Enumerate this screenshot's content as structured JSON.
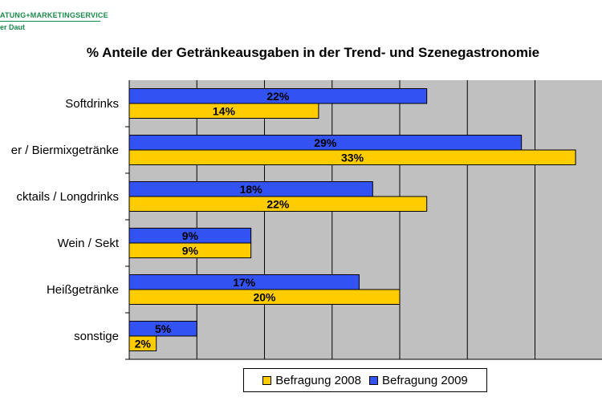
{
  "logo": {
    "line1": "ATUNG+MARKETINGSERVICE",
    "line2": "er Daut"
  },
  "chart_data": {
    "type": "bar",
    "orientation": "horizontal",
    "title": "% Anteile der Getränkeausgaben in der Trend- und Szenegastronomie",
    "categories": [
      "Softdrinks",
      "er / Biermixgetränke",
      "cktails / Longdrinks",
      "Wein / Sekt",
      "Heißgetränke",
      "sonstige"
    ],
    "series": [
      {
        "name": "Befragung 2009",
        "values": [
          22,
          29,
          18,
          9,
          17,
          5
        ],
        "labels": [
          "22%",
          "29%",
          "18%",
          "9%",
          "17%",
          "5%"
        ],
        "color": "#3352f2"
      },
      {
        "name": "Befragung 2008",
        "values": [
          14,
          33,
          22,
          9,
          20,
          2
        ],
        "labels": [
          "14%",
          "33%",
          "22%",
          "9%",
          "20%",
          "2%"
        ],
        "color": "#ffcc00"
      }
    ],
    "xlim": [
      0,
      35
    ],
    "grid": true,
    "plot_background": "#c0c0c0",
    "legend_position": "bottom",
    "legend_order": [
      "Befragung 2008",
      "Befragung 2009"
    ]
  }
}
